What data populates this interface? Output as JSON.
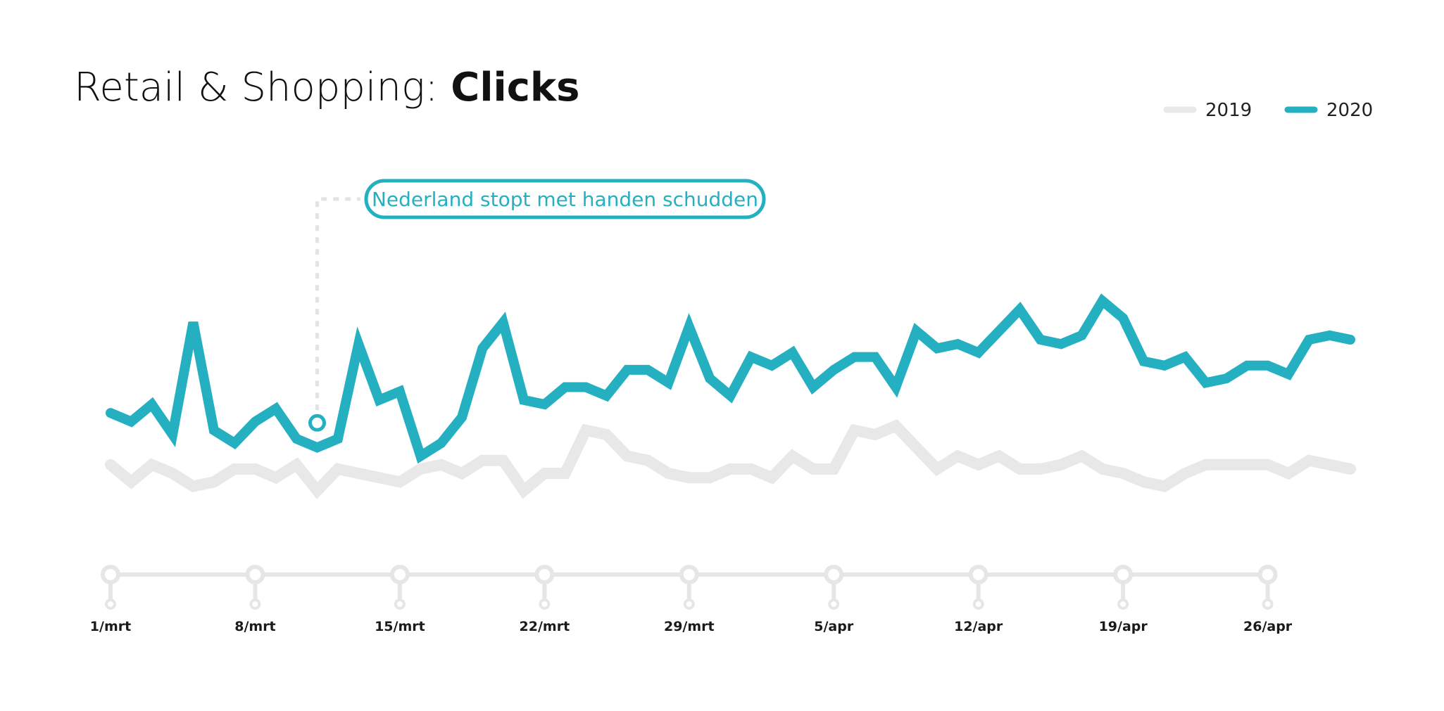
{
  "title": {
    "prefix": "Retail & Shopping: ",
    "emphasis": "Clicks"
  },
  "colors": {
    "series_2019": "#e8e8e8",
    "series_2020": "#24b0c1",
    "axis": "#e6e6e6",
    "leader": "#e3e3e3"
  },
  "chart_data": {
    "type": "line",
    "title": "Retail & Shopping: Clicks",
    "xlabel": "",
    "ylabel": "",
    "x_start": "2020-03-01",
    "x_end": "2020-04-30",
    "ylim": [
      0,
      100
    ],
    "grid": false,
    "legend_placement": "top-right",
    "x_ticks": [
      "1/mrt",
      "8/mrt",
      "15/mrt",
      "22/mrt",
      "29/mrt",
      "5/apr",
      "12/apr",
      "19/apr",
      "26/apr"
    ],
    "series": [
      {
        "name": "2019",
        "values": [
          40,
          36,
          40,
          38,
          35,
          36,
          39,
          39,
          37,
          40,
          34,
          39,
          38,
          37,
          36,
          39,
          40,
          38,
          41,
          41,
          34,
          38,
          38,
          48,
          47,
          42,
          41,
          38,
          37,
          37,
          39,
          39,
          37,
          42,
          39,
          39,
          48,
          47,
          49,
          44,
          39,
          42,
          40,
          42,
          39,
          39,
          40,
          42,
          39,
          38,
          36,
          35,
          38,
          40,
          40,
          40,
          40,
          38,
          41,
          40,
          39
        ]
      },
      {
        "name": "2020",
        "values": [
          52,
          50,
          54,
          47,
          73,
          48,
          45,
          50,
          53,
          46,
          44,
          46,
          68,
          55,
          57,
          42,
          45,
          51,
          67,
          73,
          55,
          54,
          58,
          58,
          56,
          62,
          62,
          59,
          72,
          60,
          56,
          65,
          63,
          66,
          58,
          62,
          65,
          65,
          58,
          71,
          67,
          68,
          66,
          71,
          76,
          69,
          68,
          70,
          78,
          74,
          64,
          63,
          65,
          59,
          60,
          63,
          63,
          61,
          69,
          70,
          69
        ]
      }
    ],
    "annotation": {
      "text": "Nederland stopt met handen schudden",
      "date": "2020-03-11",
      "series": "2020"
    }
  }
}
